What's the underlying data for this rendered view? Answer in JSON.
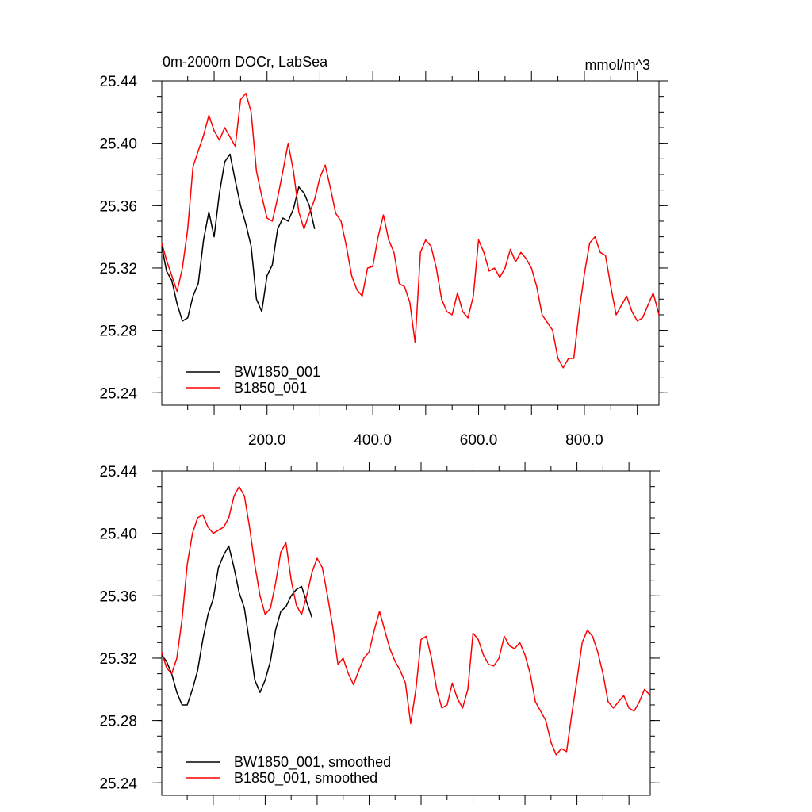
{
  "colors": {
    "series_black": "#000000",
    "series_red": "#ff0000",
    "axis": "#000000"
  },
  "chart_data": [
    {
      "type": "line",
      "title": "0m-2000m DOCr, LabSea",
      "units": "mmol/m^3",
      "xlim": [
        1,
        941
      ],
      "ylim": [
        25.232,
        25.44
      ],
      "yticks": [
        "25.44",
        "25.40",
        "25.36",
        "25.32",
        "25.28",
        "25.24"
      ],
      "xticks": [
        "200.0",
        "400.0",
        "600.0",
        "800.0"
      ],
      "legend_position": "lower-left",
      "series": [
        {
          "name": "BW1850_001",
          "color": "#000000",
          "x": [
            1,
            10,
            20,
            30,
            40,
            50,
            60,
            70,
            80,
            90,
            100,
            110,
            120,
            130,
            140,
            150,
            160,
            170,
            180,
            190,
            200,
            210,
            220,
            230,
            240,
            250,
            260,
            270,
            280,
            290
          ],
          "values": [
            25.334,
            25.318,
            25.312,
            25.297,
            25.286,
            25.288,
            25.302,
            25.31,
            25.338,
            25.356,
            25.34,
            25.368,
            25.388,
            25.393,
            25.376,
            25.36,
            25.348,
            25.334,
            25.3,
            25.292,
            25.315,
            25.322,
            25.345,
            25.352,
            25.35,
            25.358,
            25.372,
            25.368,
            25.36,
            25.345
          ]
        },
        {
          "name": "B1850_001",
          "color": "#ff0000",
          "x": [
            1,
            10,
            20,
            30,
            40,
            50,
            60,
            70,
            80,
            90,
            100,
            110,
            120,
            130,
            140,
            150,
            160,
            170,
            180,
            190,
            200,
            210,
            220,
            230,
            240,
            250,
            260,
            270,
            280,
            290,
            300,
            310,
            320,
            330,
            340,
            350,
            360,
            370,
            380,
            390,
            400,
            410,
            420,
            430,
            440,
            450,
            460,
            470,
            480,
            490,
            500,
            510,
            520,
            530,
            540,
            550,
            560,
            570,
            580,
            590,
            600,
            610,
            620,
            630,
            640,
            650,
            660,
            670,
            680,
            690,
            700,
            710,
            720,
            730,
            740,
            750,
            760,
            770,
            780,
            790,
            800,
            810,
            820,
            830,
            840,
            850,
            860,
            870,
            880,
            890,
            900,
            910,
            920,
            930,
            941
          ],
          "values": [
            25.336,
            25.325,
            25.315,
            25.305,
            25.32,
            25.345,
            25.385,
            25.395,
            25.405,
            25.418,
            25.408,
            25.402,
            25.41,
            25.404,
            25.398,
            25.428,
            25.432,
            25.42,
            25.382,
            25.366,
            25.352,
            25.35,
            25.365,
            25.382,
            25.4,
            25.382,
            25.356,
            25.345,
            25.355,
            25.364,
            25.378,
            25.386,
            25.371,
            25.355,
            25.35,
            25.334,
            25.315,
            25.306,
            25.302,
            25.32,
            25.321,
            25.34,
            25.354,
            25.338,
            25.33,
            25.31,
            25.308,
            25.298,
            25.272,
            25.33,
            25.338,
            25.334,
            25.32,
            25.3,
            25.292,
            25.29,
            25.304,
            25.292,
            25.288,
            25.302,
            25.338,
            25.33,
            25.318,
            25.32,
            25.314,
            25.32,
            25.332,
            25.324,
            25.33,
            25.326,
            25.32,
            25.308,
            25.29,
            25.285,
            25.28,
            25.262,
            25.256,
            25.262,
            25.262,
            25.292,
            25.316,
            25.336,
            25.34,
            25.33,
            25.328,
            25.308,
            25.29,
            25.296,
            25.302,
            25.292,
            25.286,
            25.288,
            25.296,
            25.304,
            25.29
          ]
        }
      ]
    },
    {
      "type": "line",
      "xlim": [
        1,
        941
      ],
      "ylim": [
        25.232,
        25.44
      ],
      "yticks": [
        "25.44",
        "25.40",
        "25.36",
        "25.32",
        "25.28",
        "25.24"
      ],
      "legend_position": "lower-left",
      "series": [
        {
          "name": "BW1850_001, smoothed",
          "color": "#000000",
          "x": [
            1,
            10,
            20,
            30,
            40,
            50,
            60,
            70,
            80,
            90,
            100,
            110,
            120,
            130,
            140,
            150,
            160,
            170,
            180,
            190,
            200,
            210,
            220,
            230,
            240,
            250,
            260,
            270,
            280,
            290
          ],
          "values": [
            25.322,
            25.318,
            25.31,
            25.298,
            25.29,
            25.29,
            25.3,
            25.312,
            25.332,
            25.348,
            25.358,
            25.378,
            25.386,
            25.392,
            25.378,
            25.362,
            25.352,
            25.33,
            25.306,
            25.298,
            25.306,
            25.318,
            25.338,
            25.35,
            25.353,
            25.36,
            25.364,
            25.366,
            25.356,
            25.346
          ]
        },
        {
          "name": "B1850_001, smoothed",
          "color": "#ff0000",
          "x": [
            1,
            10,
            20,
            30,
            40,
            50,
            60,
            70,
            80,
            90,
            100,
            110,
            120,
            130,
            140,
            150,
            160,
            170,
            180,
            190,
            200,
            210,
            220,
            230,
            240,
            250,
            260,
            270,
            280,
            290,
            300,
            310,
            320,
            330,
            340,
            350,
            360,
            370,
            380,
            390,
            400,
            410,
            420,
            430,
            440,
            450,
            460,
            470,
            480,
            490,
            500,
            510,
            520,
            530,
            540,
            550,
            560,
            570,
            580,
            590,
            600,
            610,
            620,
            630,
            640,
            650,
            660,
            670,
            680,
            690,
            700,
            710,
            720,
            730,
            740,
            750,
            760,
            770,
            780,
            790,
            800,
            810,
            820,
            830,
            840,
            850,
            860,
            870,
            880,
            890,
            900,
            910,
            920,
            930,
            941
          ],
          "values": [
            25.324,
            25.314,
            25.31,
            25.32,
            25.345,
            25.38,
            25.4,
            25.41,
            25.412,
            25.404,
            25.4,
            25.402,
            25.404,
            25.41,
            25.424,
            25.43,
            25.424,
            25.404,
            25.38,
            25.36,
            25.348,
            25.352,
            25.368,
            25.388,
            25.394,
            25.37,
            25.354,
            25.348,
            25.36,
            25.375,
            25.384,
            25.378,
            25.36,
            25.34,
            25.316,
            25.32,
            25.31,
            25.303,
            25.312,
            25.32,
            25.324,
            25.338,
            25.35,
            25.338,
            25.326,
            25.318,
            25.312,
            25.304,
            25.278,
            25.3,
            25.332,
            25.334,
            25.32,
            25.3,
            25.288,
            25.29,
            25.304,
            25.294,
            25.288,
            25.3,
            25.336,
            25.332,
            25.322,
            25.316,
            25.315,
            25.32,
            25.334,
            25.328,
            25.326,
            25.33,
            25.322,
            25.31,
            25.292,
            25.286,
            25.28,
            25.266,
            25.258,
            25.262,
            25.26,
            25.284,
            25.306,
            25.33,
            25.338,
            25.334,
            25.324,
            25.31,
            25.292,
            25.288,
            25.292,
            25.296,
            25.288,
            25.286,
            25.292,
            25.3,
            25.296
          ]
        }
      ]
    }
  ]
}
